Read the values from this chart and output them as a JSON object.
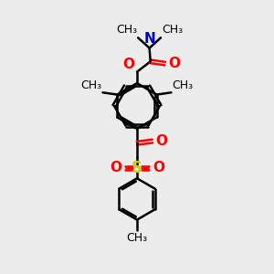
{
  "bg_color": "#ececec",
  "line_color": "#000000",
  "o_color": "#ff0000",
  "n_color": "#0000cc",
  "s_color": "#cccc00",
  "line_width": 1.8,
  "font_size": 9,
  "xlim": [
    0,
    10
  ],
  "ylim": [
    0,
    13
  ],
  "figsize": [
    3.0,
    3.0
  ],
  "dpi": 100
}
